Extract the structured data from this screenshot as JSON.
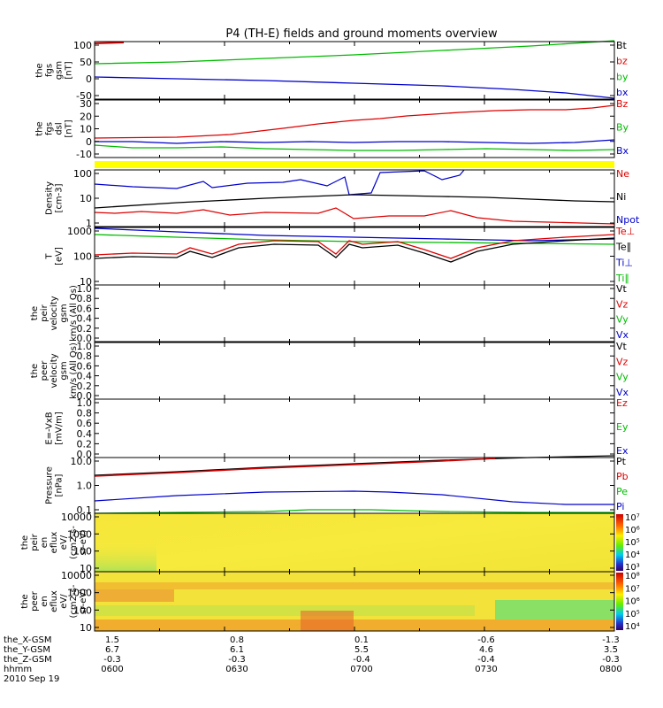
{
  "title": "P4 (TH-E) fields and ground moments overview",
  "panels": [
    {
      "id": "fgs-gsm",
      "ylabel": [
        "the",
        "fgs",
        "gsm",
        "[nT]"
      ],
      "ticks": [
        "100",
        "50",
        "0",
        "-50"
      ],
      "legend": [
        {
          "label": "Bt",
          "color": "#000000"
        },
        {
          "label": "bz",
          "color": "#dd0000"
        },
        {
          "label": "by",
          "color": "#00bb00"
        },
        {
          "label": "bx",
          "color": "#0000cc"
        }
      ]
    },
    {
      "id": "fgs-dsl",
      "ylabel": [
        "the",
        "fgs",
        "dsl",
        "[nT]"
      ],
      "ticks": [
        "30",
        "20",
        "10",
        "0",
        "-10"
      ],
      "legend": [
        {
          "label": "Bz",
          "color": "#dd0000"
        },
        {
          "label": "By",
          "color": "#00bb00"
        },
        {
          "label": "Bx",
          "color": "#0000cc"
        }
      ]
    },
    {
      "id": "density",
      "ylabel": [
        "Density",
        "[cm-3]"
      ],
      "ticks": [
        "100",
        "10",
        "1"
      ],
      "legend": [
        {
          "label": "Ne",
          "color": "#dd0000"
        },
        {
          "label": "Ni",
          "color": "#000000"
        },
        {
          "label": "Npot",
          "color": "#0000cc"
        }
      ]
    },
    {
      "id": "temp",
      "ylabel": [
        "T",
        "[eV]"
      ],
      "ticks": [
        "1000",
        "100",
        "10"
      ],
      "legend": [
        {
          "label": "Te⊥",
          "color": "#dd0000"
        },
        {
          "label": "Te∥",
          "color": "#000000"
        },
        {
          "label": "Ti⊥",
          "color": "#0000cc"
        },
        {
          "label": "Ti∥",
          "color": "#00bb00"
        }
      ]
    },
    {
      "id": "peir-vel",
      "ylabel": [
        "the",
        "peir",
        "velocity",
        "gsm",
        "km/s (All Qs)"
      ],
      "ticks": [
        "1.0",
        "0.8",
        "0.6",
        "0.4",
        "0.2",
        "0.0"
      ],
      "legend": [
        {
          "label": "Vt",
          "color": "#000000"
        },
        {
          "label": "Vz",
          "color": "#dd0000"
        },
        {
          "label": "Vy",
          "color": "#00bb00"
        },
        {
          "label": "Vx",
          "color": "#0000cc"
        }
      ]
    },
    {
      "id": "peer-vel",
      "ylabel": [
        "the",
        "peer",
        "velocity",
        "gsm",
        "km/s (All Qs)"
      ],
      "ticks": [
        "1.0",
        "0.8",
        "0.6",
        "0.4",
        "0.2",
        "0.0"
      ],
      "legend": [
        {
          "label": "Vt",
          "color": "#000000"
        },
        {
          "label": "Vz",
          "color": "#dd0000"
        },
        {
          "label": "Vy",
          "color": "#00bb00"
        },
        {
          "label": "Vx",
          "color": "#0000cc"
        }
      ]
    },
    {
      "id": "efield",
      "ylabel": [
        "E=-VxB",
        "[mV/m]"
      ],
      "ticks": [
        "1.0",
        "0.8",
        "0.6",
        "0.4",
        "0.2",
        "0.0"
      ],
      "legend": [
        {
          "label": "Ez",
          "color": "#dd0000"
        },
        {
          "label": "Ey",
          "color": "#00bb00"
        },
        {
          "label": "Ex",
          "color": "#0000cc"
        }
      ]
    },
    {
      "id": "pressure",
      "ylabel": [
        "Pressure",
        "[nPa]"
      ],
      "ticks": [
        "10.0",
        "1.0",
        "0.1"
      ],
      "legend": [
        {
          "label": "Pt",
          "color": "#000000"
        },
        {
          "label": "Pb",
          "color": "#dd0000"
        },
        {
          "label": "Pe",
          "color": "#00bb00"
        },
        {
          "label": "Pi",
          "color": "#0000cc"
        }
      ]
    },
    {
      "id": "peir-eflux",
      "ylabel": [
        "the",
        "peir",
        "en",
        "eflux",
        "eV/",
        "(cm2-s-",
        "sr-eV)"
      ],
      "ticks": [
        "10000",
        "1000",
        "100",
        "10"
      ],
      "colorbar": [
        "10⁷",
        "10⁶",
        "10⁵",
        "10⁴",
        "10³"
      ]
    },
    {
      "id": "peer-eflux",
      "ylabel": [
        "the",
        "peer",
        "en",
        "eflux",
        "eV/",
        "(cm2-s-",
        "sr-eV)"
      ],
      "ticks": [
        "10000",
        "1000",
        "100",
        "10"
      ],
      "colorbar": [
        "10⁸",
        "10⁷",
        "10⁶",
        "10⁵",
        "10⁴"
      ]
    }
  ],
  "xaxis": {
    "rows": [
      {
        "label": "the_X-GSM",
        "values": [
          "1.5",
          "0.8",
          "0.1",
          "-0.6",
          "-1.3"
        ]
      },
      {
        "label": "the_Y-GSM",
        "values": [
          "6.7",
          "6.1",
          "5.5",
          "4.6",
          "3.5"
        ]
      },
      {
        "label": "the_Z-GSM",
        "values": [
          "-0.3",
          "-0.3",
          "-0.4",
          "-0.4",
          "-0.3"
        ]
      },
      {
        "label": "hhmm",
        "values": [
          "0600",
          "0630",
          "0700",
          "0730",
          "0800"
        ]
      }
    ],
    "date": "2010 Sep 19"
  },
  "chart_data": [
    {
      "type": "line",
      "title": "the fgs gsm [nT]",
      "x": [
        "0600",
        "0630",
        "0700",
        "0730",
        "0800"
      ],
      "ylim": [
        -60,
        110
      ],
      "series": [
        {
          "name": "bz",
          "values": [
            105,
            105,
            105,
            105,
            105
          ]
        },
        {
          "name": "by",
          "values": [
            30,
            40,
            55,
            75,
            100
          ]
        },
        {
          "name": "bx",
          "values": [
            -12,
            -14,
            -18,
            -28,
            -50
          ]
        }
      ]
    },
    {
      "type": "line",
      "title": "the fgs dsl [nT]",
      "x": [
        "0600",
        "0630",
        "0700",
        "0730",
        "0800"
      ],
      "ylim": [
        -15,
        30
      ],
      "series": [
        {
          "name": "Bz",
          "values": [
            3,
            4,
            10,
            18,
            25
          ]
        },
        {
          "name": "By",
          "values": [
            -5,
            -3,
            -5,
            -5,
            -5
          ]
        },
        {
          "name": "Bx",
          "values": [
            0,
            -1,
            0,
            0,
            0
          ]
        }
      ]
    },
    {
      "type": "line",
      "title": "Density [cm-3]",
      "ylog": true,
      "x": [
        "0600",
        "0630",
        "0700",
        "0730",
        "0800"
      ],
      "series": [
        {
          "name": "Ne",
          "values": [
            2,
            2,
            1.5,
            1.5,
            0.5
          ]
        },
        {
          "name": "Ni",
          "values": [
            3,
            5,
            8,
            7,
            4
          ]
        },
        {
          "name": "Npot",
          "values": [
            60,
            120,
            40,
            100,
            150
          ]
        }
      ]
    },
    {
      "type": "line",
      "title": "T [eV]",
      "ylog": true,
      "x": [
        "0600",
        "0630",
        "0700",
        "0730",
        "0800"
      ],
      "series": [
        {
          "name": "Te⊥",
          "values": [
            150,
            350,
            400,
            200,
            500
          ]
        },
        {
          "name": "Te∥",
          "values": [
            120,
            300,
            380,
            180,
            450
          ]
        },
        {
          "name": "Ti⊥",
          "values": [
            900,
            650,
            450,
            400,
            500
          ]
        },
        {
          "name": "Ti∥",
          "values": [
            700,
            500,
            400,
            380,
            350
          ]
        }
      ]
    },
    {
      "type": "line",
      "title": "Pressure [nPa]",
      "ylog": true,
      "x": [
        "0600",
        "0630",
        "0700",
        "0730",
        "0800"
      ],
      "series": [
        {
          "name": "Pt",
          "values": [
            3,
            6,
            11,
            20,
            35
          ]
        },
        {
          "name": "Pb",
          "values": [
            3,
            6,
            11,
            20,
            35
          ]
        },
        {
          "name": "Pe",
          "values": [
            0.02,
            0.02,
            0.03,
            0.03,
            0.02
          ]
        },
        {
          "name": "Pi",
          "values": [
            0.2,
            0.45,
            0.5,
            0.45,
            0.15
          ]
        }
      ]
    },
    {
      "type": "heatmap",
      "title": "the peir en eflux",
      "x": [
        "0600",
        "0630",
        "0700",
        "0730",
        "0800"
      ],
      "yrange": [
        5,
        30000
      ],
      "color_range": [
        "10³",
        "10⁷"
      ]
    },
    {
      "type": "heatmap",
      "title": "the peer en eflux",
      "x": [
        "0600",
        "0630",
        "0700",
        "0730",
        "0800"
      ],
      "yrange": [
        5,
        30000
      ],
      "color_range": [
        "10⁴",
        "10⁸"
      ]
    }
  ]
}
